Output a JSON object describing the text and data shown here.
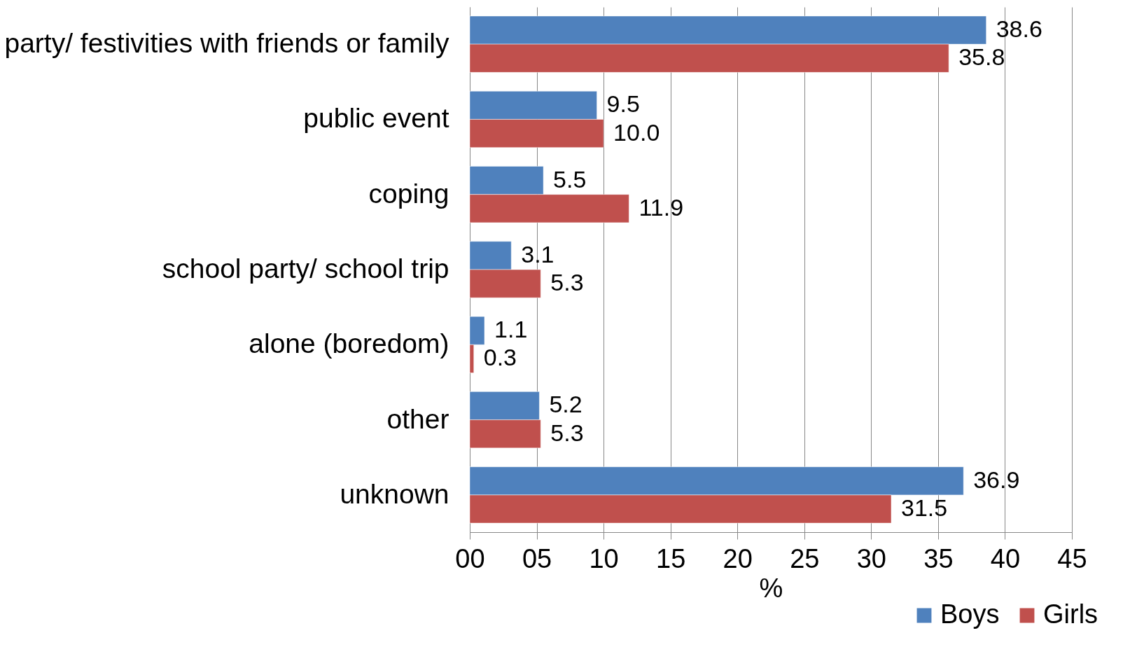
{
  "chart_data": {
    "type": "bar",
    "orientation": "horizontal",
    "xlabel": "%",
    "categories": [
      "party/ festivities with friends or family",
      "public event",
      "coping",
      "school party/ school trip",
      "alone (boredom)",
      "other",
      "unknown"
    ],
    "series": [
      {
        "name": "Boys",
        "color": "#4f81bd",
        "values": [
          38.6,
          9.5,
          5.5,
          3.1,
          1.1,
          5.2,
          36.9
        ],
        "value_labels": [
          "38.6",
          "9.5",
          "5.5",
          "3.1",
          "1.1",
          "5.2",
          "36.9"
        ]
      },
      {
        "name": "Girls",
        "color": "#c0504d",
        "values": [
          35.8,
          10.0,
          11.9,
          5.3,
          0.3,
          5.3,
          31.5
        ],
        "value_labels": [
          "35.8",
          "10.0",
          "11.9",
          "5.3",
          "0.3",
          "5.3",
          "31.5"
        ]
      }
    ],
    "xlim": [
      0,
      45
    ],
    "xticks": [
      {
        "value": 0,
        "label": "00"
      },
      {
        "value": 5,
        "label": "05"
      },
      10,
      15,
      20,
      25,
      30,
      35,
      40,
      45
    ],
    "grid": "x",
    "legend": "bottom right"
  }
}
